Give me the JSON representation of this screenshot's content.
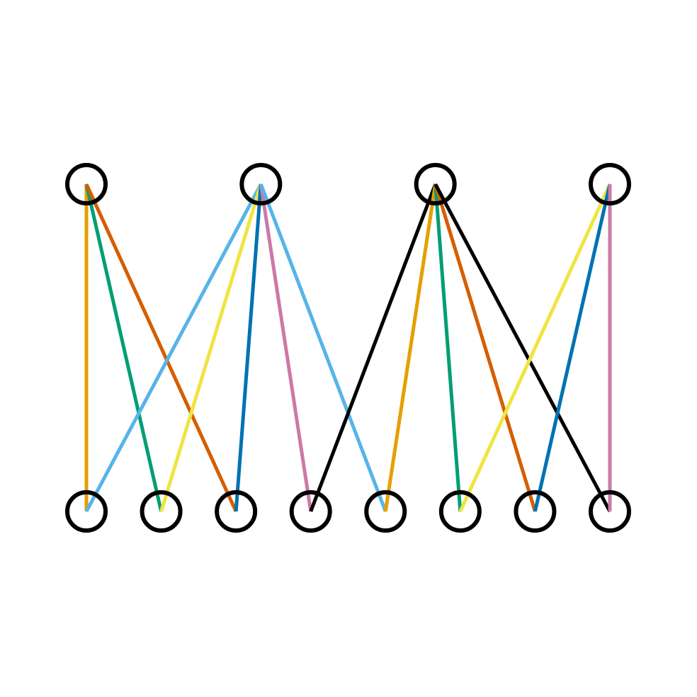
{
  "graph": {
    "top_nodes": [
      "t1",
      "t2",
      "t3",
      "t4"
    ],
    "bottom_nodes": [
      "b1",
      "b2",
      "b3",
      "b4",
      "b5",
      "b6",
      "b7",
      "b8"
    ],
    "node_outline_color": "#000000",
    "edges": [
      {
        "from": "t1",
        "to": "b1",
        "color": "#E69F00"
      },
      {
        "from": "t1",
        "to": "b2",
        "color": "#009E73"
      },
      {
        "from": "t1",
        "to": "b3",
        "color": "#D55E00"
      },
      {
        "from": "t2",
        "to": "b1",
        "color": "#56B4E9"
      },
      {
        "from": "t2",
        "to": "b2",
        "color": "#F0E442"
      },
      {
        "from": "t2",
        "to": "b3",
        "color": "#0072B2"
      },
      {
        "from": "t2",
        "to": "b4",
        "color": "#CC79A7"
      },
      {
        "from": "t2",
        "to": "b5",
        "color": "#56B4E9"
      },
      {
        "from": "t3",
        "to": "b4",
        "color": "#000000"
      },
      {
        "from": "t3",
        "to": "b5",
        "color": "#E69F00"
      },
      {
        "from": "t3",
        "to": "b6",
        "color": "#009E73"
      },
      {
        "from": "t3",
        "to": "b7",
        "color": "#D55E00"
      },
      {
        "from": "t3",
        "to": "b8",
        "color": "#000000"
      },
      {
        "from": "t4",
        "to": "b6",
        "color": "#F0E442"
      },
      {
        "from": "t4",
        "to": "b7",
        "color": "#0072B2"
      },
      {
        "from": "t4",
        "to": "b8",
        "color": "#CC79A7"
      }
    ]
  }
}
